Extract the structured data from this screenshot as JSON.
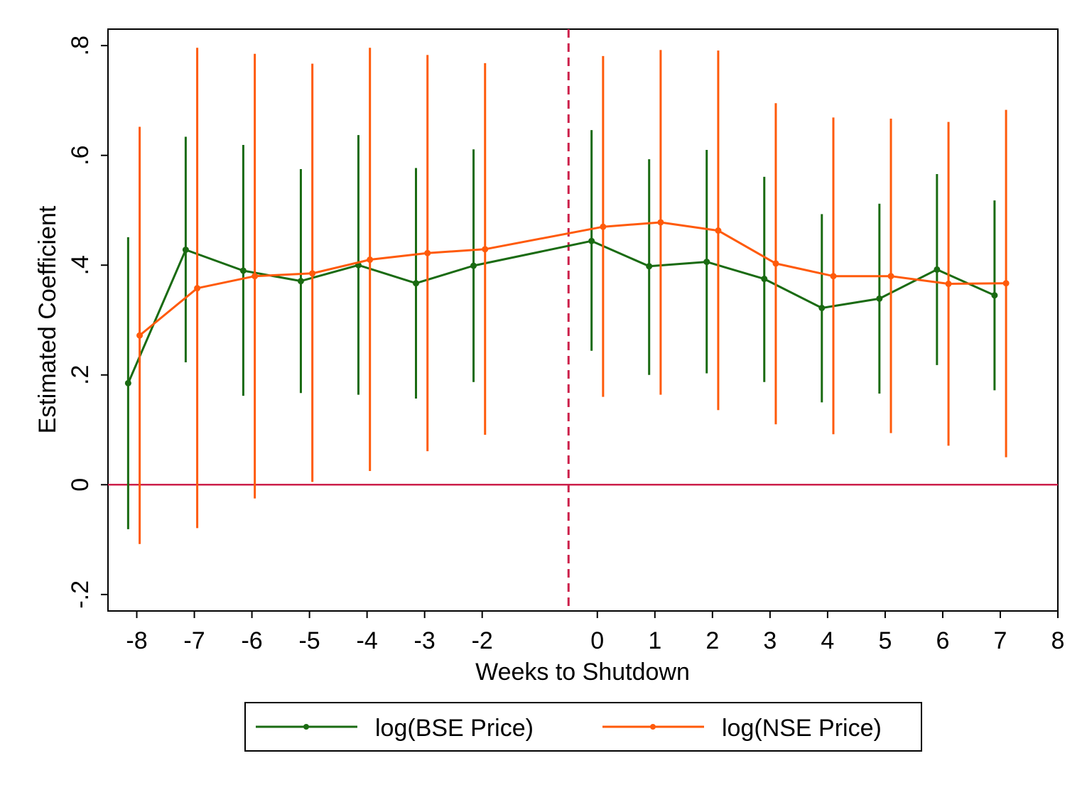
{
  "chart_data": {
    "type": "line",
    "xlabel": "Weeks to Shutdown",
    "ylabel": "Estimated Coefficient",
    "xlim": [
      -8.5,
      8
    ],
    "ylim": [
      -0.23,
      0.83
    ],
    "x_ticks": [
      -8,
      -7,
      -6,
      -5,
      -4,
      -3,
      -2,
      0,
      1,
      2,
      3,
      4,
      5,
      6,
      7,
      8
    ],
    "x_tick_labels": [
      "-8",
      "-7",
      "-6",
      "-5",
      "-4",
      "-3",
      "-2",
      "0",
      "1",
      "2",
      "3",
      "4",
      "5",
      "6",
      "7",
      "8"
    ],
    "y_ticks": [
      -0.2,
      0,
      0.2,
      0.4,
      0.6,
      0.8
    ],
    "y_tick_labels": [
      "-.2",
      "0",
      ".2",
      ".4",
      ".6",
      ".8"
    ],
    "reference_lines": {
      "horizontal_y": 0,
      "vertical_x": -0.5,
      "color": "#cc1f4a"
    },
    "grid": false,
    "legend_position": "bottom",
    "series": [
      {
        "name": "log(BSE Price)",
        "color": "#1a6b12",
        "x": [
          -8.15,
          -7.15,
          -6.15,
          -5.15,
          -4.15,
          -3.15,
          -2.15,
          -0.1,
          0.9,
          1.9,
          2.9,
          3.9,
          4.9,
          5.9,
          6.9
        ],
        "y": [
          0.185,
          0.428,
          0.39,
          0.371,
          0.4,
          0.367,
          0.399,
          0.444,
          0.398,
          0.406,
          0.375,
          0.322,
          0.339,
          0.392,
          0.345
        ],
        "lower": [
          -0.081,
          0.223,
          0.162,
          0.167,
          0.164,
          0.157,
          0.187,
          0.244,
          0.2,
          0.203,
          0.187,
          0.15,
          0.166,
          0.218,
          0.172
        ],
        "upper": [
          0.451,
          0.634,
          0.619,
          0.575,
          0.637,
          0.577,
          0.611,
          0.646,
          0.593,
          0.61,
          0.561,
          0.493,
          0.512,
          0.566,
          0.518
        ]
      },
      {
        "name": "log(NSE Price)",
        "color": "#ff5a0a",
        "x": [
          -7.95,
          -6.95,
          -5.95,
          -4.95,
          -3.95,
          -2.95,
          -1.95,
          0.1,
          1.1,
          2.1,
          3.1,
          4.1,
          5.1,
          6.1,
          7.1
        ],
        "y": [
          0.272,
          0.358,
          0.38,
          0.385,
          0.41,
          0.422,
          0.429,
          0.47,
          0.478,
          0.463,
          0.403,
          0.38,
          0.38,
          0.366,
          0.367
        ],
        "lower": [
          -0.108,
          -0.079,
          -0.025,
          0.005,
          0.025,
          0.061,
          0.091,
          0.16,
          0.164,
          0.136,
          0.11,
          0.092,
          0.094,
          0.071,
          0.05
        ],
        "upper": [
          0.652,
          0.796,
          0.785,
          0.767,
          0.796,
          0.783,
          0.768,
          0.781,
          0.792,
          0.791,
          0.695,
          0.669,
          0.667,
          0.661,
          0.683
        ]
      }
    ]
  }
}
